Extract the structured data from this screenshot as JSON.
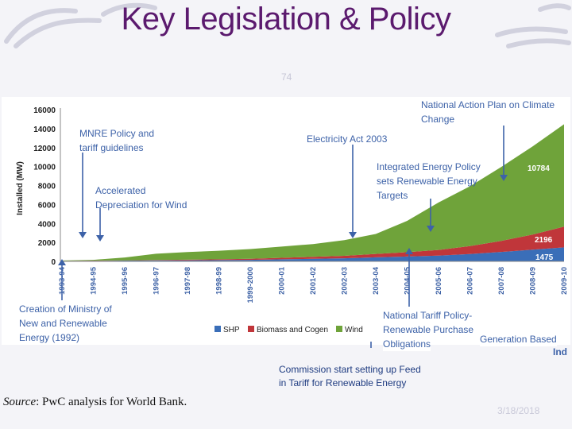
{
  "slide": {
    "title": "Key Legislation &  Policy",
    "slide_number": "74",
    "date": "3/18/2018",
    "source_label": "Source",
    "source_text": ": PwC analysis for World Bank."
  },
  "chart_data": {
    "type": "area",
    "stacked": true,
    "ylabel": "Installed (MW)",
    "ylim": [
      0,
      16000
    ],
    "yticks": [
      0,
      2000,
      4000,
      6000,
      8000,
      10000,
      12000,
      14000,
      16000
    ],
    "x": [
      "1993-94",
      "1994-95",
      "1995-96",
      "1996-97",
      "1997-98",
      "1998-99",
      "1999-2000",
      "2000-01",
      "2001-02",
      "2002-03",
      "2003-04",
      "2004-05",
      "2005-06",
      "2006-07",
      "2007-08",
      "2008-09",
      "2009-10"
    ],
    "series": [
      {
        "name": "SHP",
        "color": "#3a6eb8",
        "values": [
          40,
          60,
          80,
          100,
          110,
          130,
          160,
          220,
          270,
          330,
          430,
          510,
          600,
          770,
          1000,
          1230,
          1475
        ]
      },
      {
        "name": "Biomass and Cogen",
        "color": "#c0363a",
        "values": [
          10,
          20,
          30,
          50,
          70,
          90,
          120,
          160,
          210,
          260,
          360,
          460,
          610,
          850,
          1160,
          1600,
          2196
        ]
      },
      {
        "name": "Wind",
        "color": "#6fa33a",
        "values": [
          40,
          80,
          300,
          650,
          800,
          900,
          1020,
          1180,
          1350,
          1650,
          2100,
          3300,
          5000,
          6300,
          7800,
          9300,
          10784
        ]
      }
    ],
    "data_labels": [
      "10784",
      "2196",
      "1475"
    ],
    "legend": [
      "SHP",
      "Biomass and Cogen",
      "Wind"
    ]
  },
  "annotations": {
    "mnre": [
      "MNRE Policy and",
      "tariff guidelines"
    ],
    "accelerated": [
      "Accelerated",
      "Depreciation for Wind"
    ],
    "electricity": [
      "Electricity Act 2003"
    ],
    "napcc": [
      "National Action Plan on Climate",
      "Change"
    ],
    "integrated": [
      "Integrated Energy Policy",
      "sets Renewable Energy",
      "Targets"
    ],
    "creation": [
      "Creation of Ministry of",
      "New and Renewable",
      "Energy (1992)"
    ],
    "tariff_policy": [
      "National Tariff Policy-",
      "Renewable Purchase",
      "Obligations"
    ],
    "generation": "Generation Based",
    "ind": "Ind",
    "commission": [
      "Commission start setting up  Feed",
      "in Tariff  for Renewable Energy"
    ]
  }
}
